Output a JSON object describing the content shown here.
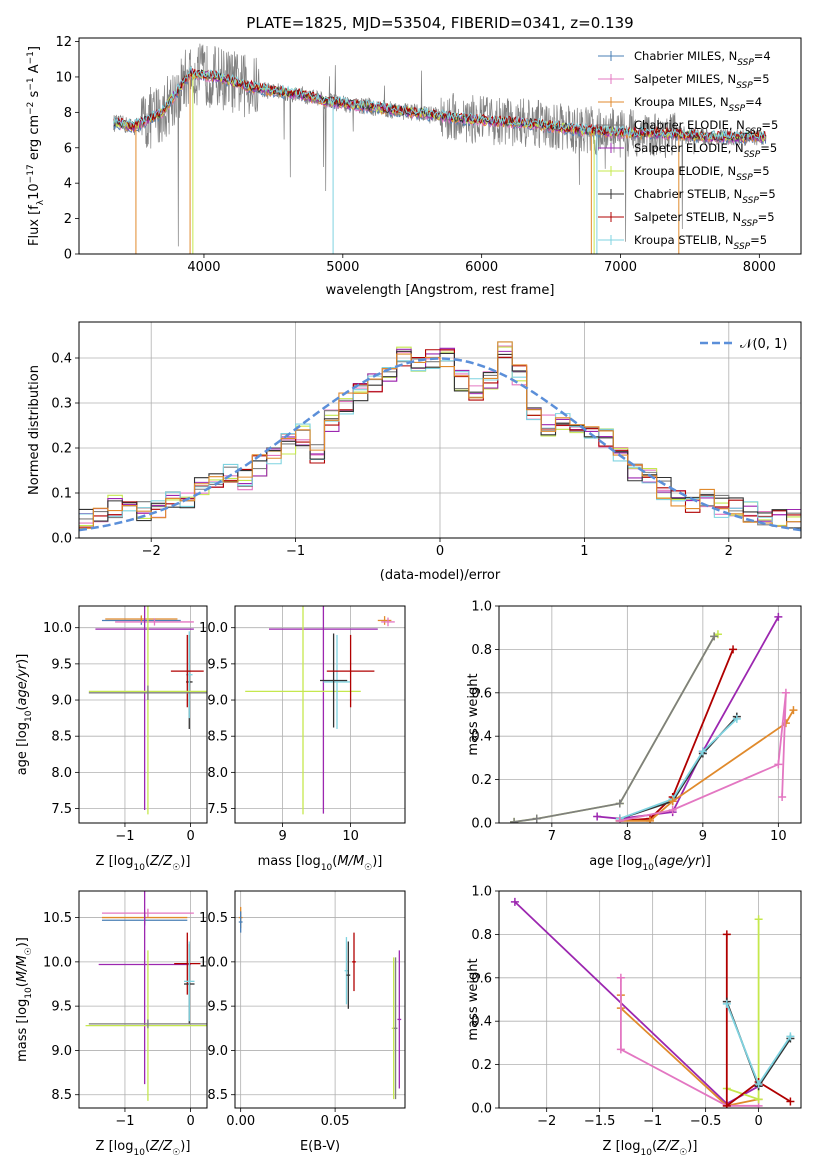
{
  "figure": {
    "title": "PLATE=1825, MJD=53504, FIBERID=0341, z=0.139"
  },
  "colors": {
    "chabrier_miles": "#4a7fb5",
    "salpeter_miles": "#e377c2",
    "kroupa_miles": "#e08a2c",
    "chabrier_elodie": "#7f7f7f",
    "salpeter_elodie": "#9c27b0",
    "kroupa_elodie": "#c5e84e",
    "chabrier_stelib": "#333333",
    "salpeter_stelib": "#b00000",
    "kroupa_stelib": "#7fd3e0",
    "normal": "#5b8fd9",
    "grid": "#b0b0b0"
  },
  "chart_data": [
    {
      "id": "spectrum",
      "type": "line",
      "xlabel": "wavelength [Angstrom, rest frame]",
      "ylabel": "Flux [f_λ10^-17 erg cm^-2 s^-1 A^-1]",
      "xlim": [
        3100,
        8300
      ],
      "ylim": [
        0,
        12.2
      ],
      "xticks": [
        4000,
        5000,
        6000,
        7000,
        8000
      ],
      "yticks": [
        0,
        2,
        4,
        6,
        8,
        10,
        12
      ],
      "grid": false,
      "legend_position": "right",
      "continuum": {
        "x": [
          3350,
          3500,
          3700,
          3900,
          4100,
          4300,
          4500,
          4700,
          4900,
          5100,
          5300,
          5500,
          5700,
          5900,
          6100,
          6300,
          6500,
          6700,
          6900,
          7100,
          7300,
          7500,
          7700,
          7900,
          8050
        ],
        "y": [
          7.4,
          7.2,
          8.0,
          10.2,
          10.0,
          9.5,
          9.2,
          9.0,
          8.6,
          8.4,
          8.2,
          8.0,
          7.8,
          7.6,
          7.5,
          7.4,
          7.2,
          7.0,
          6.9,
          6.8,
          6.8,
          6.7,
          6.6,
          6.6,
          6.6
        ]
      },
      "series": [
        {
          "name": "Chabrier MILES, N_SSP=4",
          "color_key": "chabrier_miles"
        },
        {
          "name": "Salpeter MILES, N_SSP=5",
          "color_key": "salpeter_miles"
        },
        {
          "name": "Kroupa MILES, N_SSP=4",
          "color_key": "kroupa_miles"
        },
        {
          "name": "Chabrier ELODIE, N_SSP=5",
          "color_key": "chabrier_elodie"
        },
        {
          "name": "Salpeter ELODIE, N_SSP=5",
          "color_key": "salpeter_elodie"
        },
        {
          "name": "Kroupa ELODIE, N_SSP=5",
          "color_key": "kroupa_elodie"
        },
        {
          "name": "Chabrier STELIB, N_SSP=5",
          "color_key": "chabrier_stelib"
        },
        {
          "name": "Salpeter STELIB, N_SSP=5",
          "color_key": "salpeter_stelib"
        },
        {
          "name": "Kroupa STELIB, N_SSP=5",
          "color_key": "kroupa_stelib"
        }
      ],
      "legend_labels": [
        {
          "pre": "Chabrier MILES, N",
          "sub": "SSP",
          "post": "=4"
        },
        {
          "pre": "Salpeter MILES, N",
          "sub": "SSP",
          "post": "=5"
        },
        {
          "pre": "Kroupa MILES, N",
          "sub": "SSP",
          "post": "=4"
        },
        {
          "pre": "Chabrier ELODIE, N",
          "sub": "SSP",
          "post": "=5"
        },
        {
          "pre": "Salpeter ELODIE, N",
          "sub": "SSP",
          "post": "=5"
        },
        {
          "pre": "Kroupa ELODIE, N",
          "sub": "SSP",
          "post": "=5"
        },
        {
          "pre": "Chabrier STELIB, N",
          "sub": "SSP",
          "post": "=5"
        },
        {
          "pre": "Salpeter STELIB, N",
          "sub": "SSP",
          "post": "=5"
        },
        {
          "pre": "Kroupa STELIB, N",
          "sub": "SSP",
          "post": "=5"
        }
      ]
    },
    {
      "id": "residuals",
      "type": "bar",
      "xlabel": "(data-model)/error",
      "ylabel": "Normed distribution",
      "xlim": [
        -2.5,
        2.5
      ],
      "ylim": [
        0,
        0.48
      ],
      "xticks": [
        -2,
        -1,
        0,
        1,
        2
      ],
      "yticks": [
        0.0,
        0.1,
        0.2,
        0.3,
        0.4
      ],
      "grid": true,
      "legend_position": "top-right",
      "legend_label": "𝒩(0, 1)",
      "bin_edges_start": -2.5,
      "bin_width": 0.1,
      "base_hist": [
        0.04,
        0.05,
        0.07,
        0.06,
        0.06,
        0.07,
        0.08,
        0.09,
        0.12,
        0.13,
        0.14,
        0.13,
        0.16,
        0.18,
        0.21,
        0.23,
        0.19,
        0.26,
        0.3,
        0.32,
        0.34,
        0.37,
        0.4,
        0.38,
        0.4,
        0.4,
        0.35,
        0.33,
        0.35,
        0.42,
        0.36,
        0.28,
        0.25,
        0.26,
        0.24,
        0.23,
        0.22,
        0.18,
        0.14,
        0.13,
        0.11,
        0.09,
        0.08,
        0.09,
        0.07,
        0.07,
        0.06,
        0.05,
        0.05,
        0.04
      ]
    },
    {
      "id": "z_vs_age",
      "type": "scatter",
      "xlabel": "Z [log10(Z/Z☉)]",
      "ylabel": "age [log10(age/yr)]",
      "xlim": [
        -1.7,
        0.25
      ],
      "ylim": [
        7.3,
        10.3
      ],
      "xticks": [
        -1,
        0
      ],
      "yticks": [
        7.5,
        8.0,
        8.5,
        9.0,
        9.5,
        10.0
      ],
      "grid": true,
      "points": [
        {
          "x": -0.75,
          "y": 10.1,
          "xerr": 0.6,
          "yerr": 0.06,
          "color_key": "chabrier_miles"
        },
        {
          "x": -0.75,
          "y": 10.12,
          "xerr": 0.55,
          "yerr": 0.05,
          "color_key": "kroupa_miles"
        },
        {
          "x": -0.55,
          "y": 10.08,
          "xerr": 0.6,
          "yerr": 0.05,
          "color_key": "salpeter_miles"
        },
        {
          "x": -0.7,
          "y": 9.98,
          "xerr": 0.75,
          "yerr": 2.5,
          "color_key": "salpeter_elodie"
        },
        {
          "x": -0.02,
          "y": 9.25,
          "xerr": 0.05,
          "yerr": 0.65,
          "color_key": "chabrier_stelib"
        },
        {
          "x": -0.02,
          "y": 9.35,
          "xerr": 0.05,
          "yerr": 0.6,
          "color_key": "kroupa_stelib"
        },
        {
          "x": -0.05,
          "y": 9.4,
          "xerr": 0.25,
          "yerr": 0.5,
          "color_key": "salpeter_stelib"
        },
        {
          "x": -0.65,
          "y": 9.12,
          "xerr": 0.9,
          "yerr": 1.7,
          "color_key": "kroupa_elodie"
        },
        {
          "x": -0.65,
          "y": 9.1,
          "xerr": 0.9,
          "yerr": 0.1,
          "color_key": "chabrier_elodie"
        }
      ]
    },
    {
      "id": "mass_vs_age",
      "type": "scatter",
      "xlabel": "mass [log10(M/M☉)]",
      "ylabel": "",
      "xlim": [
        8.3,
        10.8
      ],
      "ylim": [
        7.3,
        10.3
      ],
      "xticks": [
        9,
        10
      ],
      "yticks": [
        7.5,
        8.0,
        8.5,
        9.0,
        9.5,
        10.0
      ],
      "grid": true,
      "points": [
        {
          "x": 10.5,
          "y": 10.1,
          "xerr": 0.1,
          "yerr": 0.06,
          "color_key": "kroupa_miles"
        },
        {
          "x": 10.55,
          "y": 10.08,
          "xerr": 0.1,
          "yerr": 0.06,
          "color_key": "salpeter_miles"
        },
        {
          "x": 9.6,
          "y": 9.98,
          "xerr": 0.8,
          "yerr": 2.55,
          "color_key": "salpeter_elodie"
        },
        {
          "x": 9.3,
          "y": 9.12,
          "xerr": 0.85,
          "yerr": 1.7,
          "color_key": "kroupa_elodie"
        },
        {
          "x": 9.8,
          "y": 9.25,
          "xerr": 0.2,
          "yerr": 0.65,
          "color_key": "kroupa_stelib"
        },
        {
          "x": 9.75,
          "y": 9.27,
          "xerr": 0.2,
          "yerr": 0.65,
          "color_key": "chabrier_stelib"
        },
        {
          "x": 10.0,
          "y": 9.4,
          "xerr": 0.35,
          "yerr": 0.5,
          "color_key": "salpeter_stelib"
        }
      ]
    },
    {
      "id": "age_vs_weight",
      "type": "line",
      "xlabel": "age [log10(age/yr)]",
      "ylabel": "mass weight",
      "xlim": [
        6.3,
        10.3
      ],
      "ylim": [
        0,
        1.0
      ],
      "xticks": [
        7,
        8,
        9,
        10
      ],
      "yticks": [
        0.0,
        0.2,
        0.4,
        0.6,
        0.8,
        1.0
      ],
      "grid": true,
      "series": [
        {
          "color_key": "kroupa_elodie",
          "x": [
            6.5,
            6.8,
            7.9,
            9.15,
            9.2
          ],
          "y": [
            0.005,
            0.02,
            0.09,
            0.86,
            0.87
          ]
        },
        {
          "color_key": "chabrier_elodie",
          "x": [
            6.5,
            6.8,
            7.9,
            9.15
          ],
          "y": [
            0.005,
            0.02,
            0.09,
            0.86
          ]
        },
        {
          "color_key": "salpeter_elodie",
          "x": [
            7.6,
            7.9,
            8.6,
            9.0,
            10.0
          ],
          "y": [
            0.03,
            0.02,
            0.05,
            0.33,
            0.95
          ]
        },
        {
          "color_key": "salpeter_stelib",
          "x": [
            7.9,
            8.3,
            8.6,
            9.4
          ],
          "y": [
            0.01,
            0.02,
            0.12,
            0.8
          ]
        },
        {
          "color_key": "chabrier_stelib",
          "x": [
            7.9,
            8.6,
            9.0,
            9.45
          ],
          "y": [
            0.02,
            0.1,
            0.32,
            0.49
          ]
        },
        {
          "color_key": "kroupa_stelib",
          "x": [
            7.9,
            8.6,
            9.0,
            9.45
          ],
          "y": [
            0.02,
            0.11,
            0.33,
            0.48
          ]
        },
        {
          "color_key": "kroupa_miles",
          "x": [
            7.9,
            8.3,
            8.6,
            10.1,
            10.2
          ],
          "y": [
            0.01,
            0.01,
            0.1,
            0.46,
            0.52
          ]
        },
        {
          "color_key": "salpeter_miles",
          "x": [
            7.9,
            8.6,
            10.0,
            10.1,
            10.05
          ],
          "y": [
            0.01,
            0.06,
            0.27,
            0.6,
            0.12
          ]
        }
      ]
    },
    {
      "id": "z_vs_mass",
      "type": "scatter",
      "xlabel": "Z [log10(Z/Z☉)]",
      "ylabel": "mass [log10(M/M☉)]",
      "xlim": [
        -1.7,
        0.25
      ],
      "ylim": [
        8.35,
        10.8
      ],
      "xticks": [
        -1,
        0
      ],
      "yticks": [
        8.5,
        9.0,
        9.5,
        10.0,
        10.5
      ],
      "grid": true,
      "points": [
        {
          "x": -0.65,
          "y": 10.55,
          "xerr": 0.7,
          "yerr": 0.05,
          "color_key": "salpeter_miles"
        },
        {
          "x": -0.7,
          "y": 10.5,
          "xerr": 0.65,
          "yerr": 0.07,
          "color_key": "kroupa_miles"
        },
        {
          "x": -0.7,
          "y": 10.47,
          "xerr": 0.65,
          "yerr": 0.06,
          "color_key": "chabrier_miles"
        },
        {
          "x": -0.7,
          "y": 9.97,
          "xerr": 0.7,
          "yerr": 1.35,
          "color_key": "salpeter_elodie"
        },
        {
          "x": -0.05,
          "y": 9.98,
          "xerr": 0.2,
          "yerr": 0.35,
          "color_key": "salpeter_stelib"
        },
        {
          "x": -0.02,
          "y": 9.75,
          "xerr": 0.08,
          "yerr": 0.45,
          "color_key": "chabrier_stelib"
        },
        {
          "x": -0.02,
          "y": 9.78,
          "xerr": 0.08,
          "yerr": 0.45,
          "color_key": "kroupa_stelib"
        },
        {
          "x": -0.65,
          "y": 9.28,
          "xerr": 0.95,
          "yerr": 0.85,
          "color_key": "kroupa_elodie"
        },
        {
          "x": -0.65,
          "y": 9.3,
          "xerr": 0.9,
          "yerr": 0.05,
          "color_key": "chabrier_elodie"
        }
      ]
    },
    {
      "id": "ebv_vs_mass",
      "type": "scatter",
      "xlabel": "E(B-V)",
      "ylabel": "",
      "xlim": [
        -0.003,
        0.087
      ],
      "ylim": [
        8.35,
        10.8
      ],
      "xticks": [
        0.0,
        0.05
      ],
      "xtick_labels": [
        "0.00",
        "0.05"
      ],
      "yticks": [
        8.5,
        9.0,
        9.5,
        10.0,
        10.5
      ],
      "grid": true,
      "points": [
        {
          "x": 0.0,
          "y": 10.5,
          "xerr": 0.001,
          "yerr": 0.12,
          "color_key": "kroupa_miles"
        },
        {
          "x": 0.0,
          "y": 10.45,
          "xerr": 0.001,
          "yerr": 0.12,
          "color_key": "chabrier_miles"
        },
        {
          "x": 0.056,
          "y": 9.9,
          "xerr": 0.001,
          "yerr": 0.38,
          "color_key": "kroupa_stelib"
        },
        {
          "x": 0.057,
          "y": 9.85,
          "xerr": 0.001,
          "yerr": 0.38,
          "color_key": "chabrier_stelib"
        },
        {
          "x": 0.06,
          "y": 10.0,
          "xerr": 0.001,
          "yerr": 0.33,
          "color_key": "salpeter_stelib"
        },
        {
          "x": 0.081,
          "y": 9.25,
          "xerr": 0.001,
          "yerr": 0.8,
          "color_key": "kroupa_elodie"
        },
        {
          "x": 0.082,
          "y": 9.25,
          "xerr": 0.001,
          "yerr": 0.8,
          "color_key": "chabrier_elodie"
        },
        {
          "x": 0.084,
          "y": 9.35,
          "xerr": 0.001,
          "yerr": 0.78,
          "color_key": "salpeter_elodie"
        }
      ]
    },
    {
      "id": "z_vs_weight",
      "type": "line",
      "xlabel": "Z [log10(Z/Z☉)]",
      "ylabel": "mass weight",
      "xlim": [
        -2.45,
        0.4
      ],
      "ylim": [
        0,
        1.0
      ],
      "xticks": [
        -2.0,
        -1.5,
        -1.0,
        -0.5,
        0.0
      ],
      "yticks": [
        0.0,
        0.2,
        0.4,
        0.6,
        0.8,
        1.0
      ],
      "grid": true,
      "series": [
        {
          "color_key": "salpeter_elodie",
          "x": [
            -2.3,
            -0.3,
            0.0
          ],
          "y": [
            0.95,
            0.02,
            0.1
          ]
        },
        {
          "color_key": "kroupa_miles",
          "x": [
            -1.3,
            -1.3,
            -0.3,
            0.0
          ],
          "y": [
            0.52,
            0.46,
            0.01,
            0.04
          ]
        },
        {
          "color_key": "salpeter_miles",
          "x": [
            -1.3,
            -1.3,
            -0.3,
            0.0
          ],
          "y": [
            0.6,
            0.27,
            0.01,
            0.01
          ]
        },
        {
          "color_key": "kroupa_elodie",
          "x": [
            -0.3,
            0.0,
            0.0
          ],
          "y": [
            0.09,
            0.04,
            0.87
          ]
        },
        {
          "color_key": "salpeter_stelib",
          "x": [
            -0.3,
            -0.3,
            0.0,
            0.3
          ],
          "y": [
            0.8,
            0.01,
            0.12,
            0.03
          ]
        },
        {
          "color_key": "chabrier_stelib",
          "x": [
            -0.3,
            0.0,
            0.3
          ],
          "y": [
            0.49,
            0.1,
            0.32
          ]
        },
        {
          "color_key": "kroupa_stelib",
          "x": [
            -0.3,
            0.0,
            0.3
          ],
          "y": [
            0.48,
            0.11,
            0.33
          ]
        }
      ]
    }
  ]
}
